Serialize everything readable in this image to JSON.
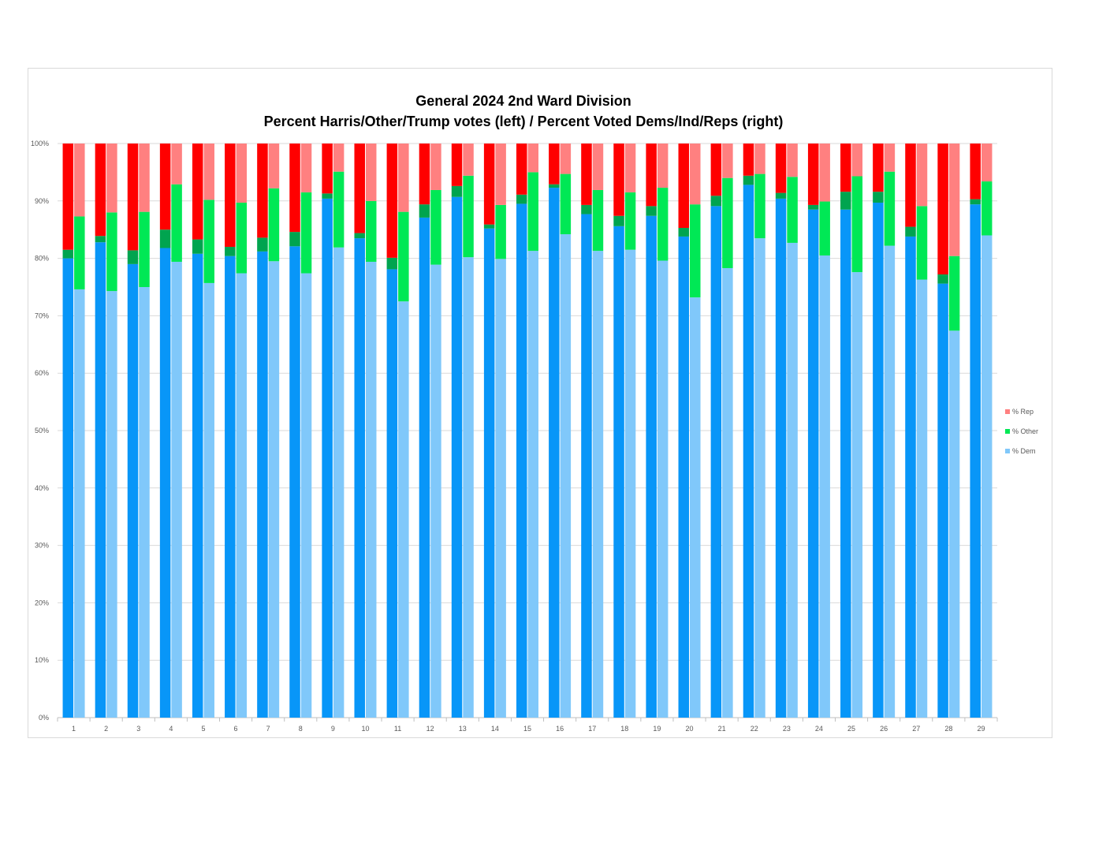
{
  "chart_data": {
    "type": "bar",
    "stacked": true,
    "title_lines": [
      "General 2024 2nd Ward Division",
      "Percent Harris/Other/Trump votes (left) / Percent Voted Dems/Ind/Reps (right)"
    ],
    "categories": [
      "1",
      "2",
      "3",
      "4",
      "5",
      "6",
      "7",
      "8",
      "9",
      "10",
      "11",
      "12",
      "13",
      "14",
      "15",
      "16",
      "17",
      "18",
      "19",
      "20",
      "21",
      "22",
      "23",
      "24",
      "25",
      "26",
      "27",
      "28",
      "29"
    ],
    "ylim": [
      0,
      100
    ],
    "yticks": [
      "0%",
      "10%",
      "20%",
      "30%",
      "40%",
      "50%",
      "60%",
      "70%",
      "80%",
      "90%",
      "100%"
    ],
    "grid": true,
    "legend_position": "right",
    "legend": [
      {
        "label": "% Rep",
        "color": "#ff8080"
      },
      {
        "label": "% Other",
        "color": "#00e855"
      },
      {
        "label": "% Dem",
        "color": "#80c8fa"
      }
    ],
    "left_bars": {
      "colors": {
        "harris": "#0896f8",
        "other": "#00a44f",
        "trump": "#ff0000"
      },
      "harris": [
        80,
        82.8,
        79,
        81.8,
        80.8,
        80.4,
        81.2,
        82.1,
        90.4,
        83.5,
        78.1,
        87.1,
        90.7,
        85.2,
        89.5,
        92.3,
        87.7,
        85.6,
        87.4,
        83.8,
        89.1,
        92.8,
        90.4,
        88.5,
        88.5,
        89.7,
        83.8,
        75.6,
        89.4
      ],
      "other": [
        1.5,
        1.1,
        2.4,
        3.2,
        2.5,
        1.6,
        2.4,
        2.5,
        0.9,
        0.9,
        2,
        2.3,
        1.9,
        0.7,
        1.6,
        0.6,
        1.6,
        1.8,
        1.7,
        1.5,
        1.8,
        1.6,
        1,
        0.8,
        3.1,
        1.9,
        1.7,
        1.6,
        0.9
      ]
    },
    "right_bars": {
      "colors": {
        "dem": "#80c8fa",
        "ind": "#00e855",
        "rep": "#ff8080"
      },
      "dem": [
        74.6,
        74.3,
        75,
        79.4,
        75.7,
        77.4,
        79.5,
        77.4,
        81.9,
        79.4,
        72.5,
        78.9,
        80.2,
        79.9,
        81.3,
        84.2,
        81.3,
        81.5,
        79.6,
        73.2,
        78.3,
        83.5,
        82.7,
        80.5,
        77.6,
        82.2,
        76.3,
        67.4,
        84
      ],
      "ind": [
        12.7,
        13.7,
        13.1,
        13.5,
        14.5,
        12.3,
        12.7,
        14.1,
        13.2,
        10.6,
        15.6,
        13,
        14.2,
        9.4,
        13.7,
        10.5,
        10.6,
        10,
        12.7,
        16.2,
        15.7,
        11.2,
        11.5,
        9.4,
        16.7,
        12.9,
        12.8,
        13,
        9.4
      ]
    }
  }
}
